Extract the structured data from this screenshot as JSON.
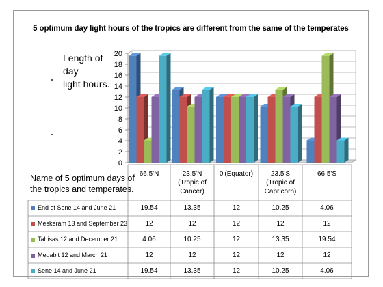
{
  "chart_data": {
    "type": "bar",
    "title": "5 optimum day light hours of the tropics are different from the same of the temperates",
    "ylabel": [
      "Length of day",
      "light hours."
    ],
    "table_label": [
      "Name of 5 optimum days of",
      "the tropics and temperates."
    ],
    "ylim": [
      0,
      20
    ],
    "yticks": [
      0,
      2,
      4,
      6,
      8,
      10,
      12,
      14,
      16,
      18,
      20
    ],
    "categories": [
      [
        "66.5'N"
      ],
      [
        "23.5'N",
        "(Tropic of",
        "Cancer)"
      ],
      [
        "0'(Equator)"
      ],
      [
        "23.5'S",
        "(Tropic of",
        "Capricorn)"
      ],
      [
        "66.5'S"
      ]
    ],
    "series": [
      {
        "name": "End of Sene 14 and June 21",
        "color": "#4f81bd",
        "values": [
          19.54,
          13.35,
          12,
          10.25,
          4.06
        ]
      },
      {
        "name": "Meskeram 13 and September 23",
        "color": "#c0504d",
        "values": [
          12,
          12,
          12,
          12,
          12
        ]
      },
      {
        "name": "Tahisas 12 and December 21",
        "color": "#9bbb59",
        "values": [
          4.06,
          10.25,
          12,
          13.35,
          19.54
        ]
      },
      {
        "name": "Megabit 12 and March 21",
        "color": "#8064a2",
        "values": [
          12,
          12,
          12,
          12,
          12
        ]
      },
      {
        "name": "Sene 14 and June 21",
        "color": "#4bacc6",
        "values": [
          19.54,
          13.35,
          12,
          10.25,
          4.06
        ]
      }
    ],
    "grid": true,
    "legend": "data-table"
  }
}
